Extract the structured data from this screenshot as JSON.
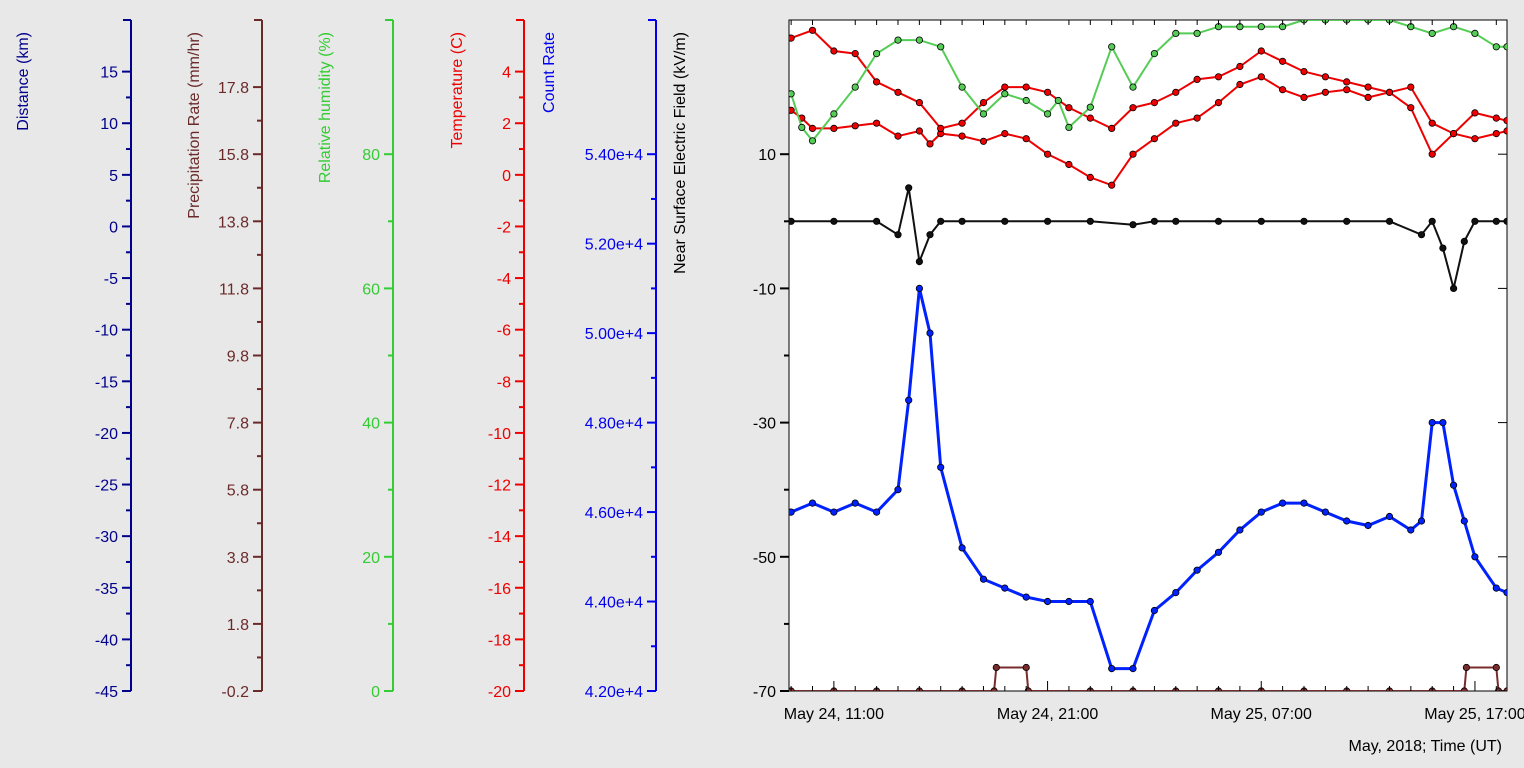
{
  "chart_data": {
    "type": "scatter",
    "xlabel": "May, 2018; Time (UT)",
    "x_ticks": [
      "May 24, 11:00",
      "May 24, 21:00",
      "May 25, 07:00",
      "May 25, 17:00"
    ],
    "x_range_hours_from_tick0": [
      -2.1,
      31.5
    ],
    "grid": false,
    "background": "#ffffff",
    "frame_background": "#e8e8e8",
    "axes": [
      {
        "id": "distance",
        "label": "Distance (km)",
        "color": "#00008b",
        "ticks": [
          "15",
          "10",
          "5",
          "0",
          "-5",
          "-10",
          "-15",
          "-20",
          "-25",
          "-30",
          "-35",
          "-40",
          "-45"
        ],
        "range": [
          -45,
          20
        ]
      },
      {
        "id": "precip",
        "label": "Precipitation Rate (mm/hr)",
        "color": "#6b2a2a",
        "ticks": [
          "17.8",
          "15.8",
          "13.8",
          "11.8",
          "9.8",
          "7.8",
          "5.8",
          "3.8",
          "1.8",
          "-0.2"
        ],
        "range": [
          -0.2,
          19.8
        ]
      },
      {
        "id": "humidity",
        "label": "Relative humidity (%)",
        "color": "#33cc33",
        "ticks": [
          "80",
          "60",
          "40",
          "20",
          "0"
        ],
        "range": [
          0,
          100
        ]
      },
      {
        "id": "temperature",
        "label": "Temperature (C)",
        "color": "#ee0000",
        "ticks": [
          "4",
          "2",
          "0",
          "-2",
          "-4",
          "-6",
          "-8",
          "-10",
          "-12",
          "-14",
          "-16",
          "-18",
          "-20"
        ],
        "range": [
          -20,
          6
        ]
      },
      {
        "id": "count",
        "label": "Count Rate",
        "color": "#0000ee",
        "ticks": [
          "5.40e+4",
          "5.20e+4",
          "5.00e+4",
          "4.80e+4",
          "4.60e+4",
          "4.40e+4",
          "4.20e+4"
        ],
        "range": [
          42000,
          57000
        ]
      },
      {
        "id": "efield",
        "label": "Near Surface Electric Field (kV/m)",
        "color": "#000000",
        "ticks": [
          "10",
          "-10",
          "-30",
          "-50",
          "-70"
        ],
        "range": [
          -70,
          30
        ]
      }
    ],
    "series": [
      {
        "axis": "temperature",
        "color": "#ee0000",
        "x": [
          -2,
          -1.5,
          -1,
          0,
          1,
          2,
          3,
          4,
          4.5,
          5,
          6,
          7,
          8,
          9,
          10,
          11,
          12,
          13,
          14,
          15,
          16,
          17,
          18,
          19,
          20,
          21,
          22,
          23,
          24,
          25,
          26,
          27,
          28,
          29,
          30,
          31,
          31.5
        ],
        "y": [
          2.5,
          2.2,
          1.8,
          1.8,
          1.9,
          2.0,
          1.5,
          1.7,
          1.2,
          1.6,
          1.5,
          1.3,
          1.6,
          1.4,
          0.8,
          0.4,
          -0.1,
          -0.4,
          0.8,
          1.4,
          2.0,
          2.2,
          2.8,
          3.5,
          3.8,
          3.3,
          3.0,
          3.2,
          3.3,
          3.0,
          3.2,
          2.6,
          0.8,
          1.6,
          2.4,
          2.2,
          2.1
        ]
      },
      {
        "axis": "temperature",
        "color": "#ee0000",
        "x": [
          -2,
          -1,
          0,
          1,
          2,
          3,
          4,
          5,
          6,
          7,
          8,
          9,
          10,
          11,
          12,
          13,
          14,
          15,
          16,
          17,
          18,
          19,
          20,
          21,
          22,
          23,
          24,
          25,
          26,
          27,
          28,
          29,
          30,
          31,
          31.5
        ],
        "y": [
          5.3,
          5.6,
          4.8,
          4.7,
          3.6,
          3.2,
          2.8,
          1.8,
          2.0,
          2.8,
          3.4,
          3.4,
          3.2,
          2.6,
          2.2,
          1.8,
          2.6,
          2.8,
          3.2,
          3.7,
          3.8,
          4.2,
          4.8,
          4.4,
          4.0,
          3.8,
          3.6,
          3.4,
          3.2,
          3.4,
          2.0,
          1.6,
          1.4,
          1.6,
          1.7
        ]
      },
      {
        "axis": "humidity",
        "color": "#55cc55",
        "x": [
          -2,
          -1.5,
          -1,
          0,
          1,
          2,
          3,
          4,
          5,
          6,
          7,
          8,
          9,
          10,
          10.5,
          11,
          12,
          13,
          14,
          15,
          16,
          17,
          18,
          19,
          20,
          21,
          22,
          23,
          24,
          25,
          26,
          27,
          28,
          29,
          30,
          31,
          31.5
        ],
        "y": [
          89,
          84,
          82,
          86,
          90,
          95,
          97,
          97,
          96,
          90,
          86,
          89,
          88,
          86,
          88,
          84,
          87,
          96,
          90,
          95,
          98,
          98,
          99,
          99,
          99,
          99,
          100,
          100,
          100,
          100,
          100,
          99,
          98,
          99,
          98,
          96,
          96
        ]
      },
      {
        "axis": "efield",
        "color": "#111111",
        "x": [
          -2,
          0,
          2,
          3,
          3.5,
          4,
          4.5,
          5,
          6,
          8,
          10,
          12,
          14,
          15,
          16,
          18,
          20,
          22,
          24,
          26,
          27.5,
          28,
          28.5,
          29,
          29.5,
          30,
          31,
          31.5
        ],
        "y": [
          0,
          0,
          0,
          -2,
          5,
          -6,
          -2,
          0,
          0,
          0,
          0,
          0,
          -0.5,
          0,
          0,
          0,
          0,
          0,
          0,
          0,
          -2,
          0,
          -4,
          -10,
          -3,
          0,
          0,
          0
        ]
      },
      {
        "axis": "count",
        "color": "#0022ff",
        "x": [
          -2,
          -1,
          0,
          1,
          2,
          3,
          3.5,
          4,
          4.5,
          5,
          6,
          7,
          8,
          9,
          10,
          11,
          12,
          13,
          14,
          15,
          16,
          17,
          18,
          19,
          20,
          21,
          22,
          23,
          24,
          25,
          26,
          27,
          27.5,
          28,
          28.5,
          29,
          29.5,
          30,
          31,
          31.5
        ],
        "y": [
          46000,
          46200,
          46000,
          46200,
          46000,
          46500,
          48500,
          51000,
          50000,
          47000,
          45200,
          44500,
          44300,
          44100,
          44000,
          44000,
          44000,
          42500,
          42500,
          43800,
          44200,
          44700,
          45100,
          45600,
          46000,
          46200,
          46200,
          46000,
          45800,
          45700,
          45900,
          45600,
          45800,
          48000,
          48000,
          46600,
          45800,
          45000,
          44300,
          44200
        ]
      },
      {
        "axis": "precip",
        "color": "#7a2c2c",
        "x": [
          -2,
          0,
          2,
          4,
          6,
          7.5,
          7.6,
          9,
          9.1,
          12,
          14,
          16,
          18,
          20,
          22,
          24,
          26,
          28,
          29.5,
          29.6,
          31,
          31.1,
          31.5
        ],
        "y": [
          -0.2,
          -0.2,
          -0.2,
          -0.2,
          -0.2,
          -0.2,
          0.5,
          0.5,
          -0.2,
          -0.2,
          -0.2,
          -0.2,
          -0.2,
          -0.2,
          -0.2,
          -0.2,
          -0.2,
          -0.2,
          -0.2,
          0.5,
          0.5,
          -0.2,
          -0.2
        ]
      }
    ]
  }
}
